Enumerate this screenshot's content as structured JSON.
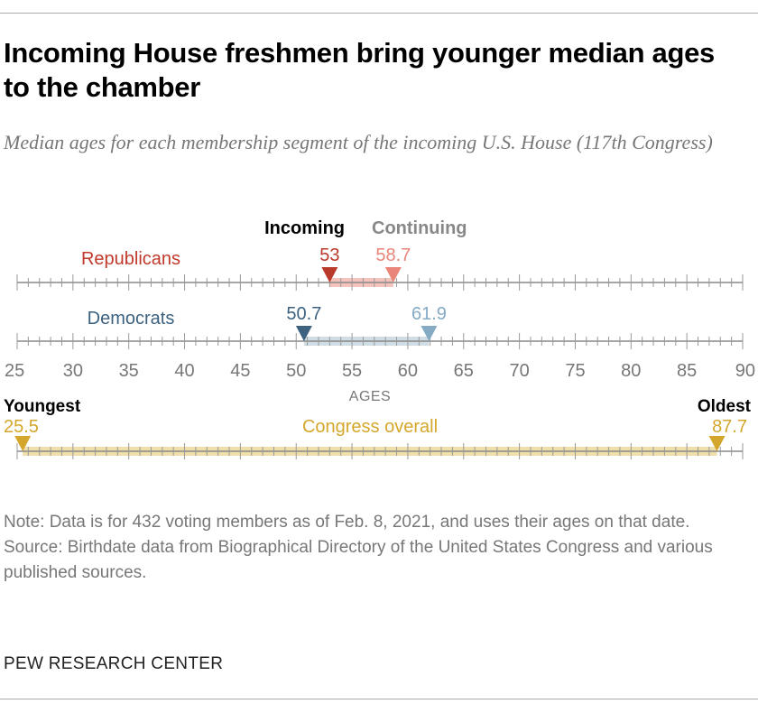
{
  "title": "Incoming House freshmen bring younger median ages to the chamber",
  "subtitle": "Median ages for each membership segment of the incoming U.S. House (117th Congress)",
  "note": "Note: Data is for 432 voting members as of Feb. 8, 2021, and uses their ages on that date.",
  "source": "Source: Birthdate data from Biographical Directory of the United States Congress and various published sources.",
  "footer": "PEW RESEARCH CENTER",
  "chart_data": {
    "type": "dot-range",
    "xlabel": "AGES",
    "xlim": [
      25,
      90
    ],
    "ticks": [
      25,
      30,
      35,
      40,
      45,
      50,
      55,
      60,
      65,
      70,
      75,
      80,
      85,
      90
    ],
    "legend": {
      "incoming": "Incoming",
      "continuing": "Continuing"
    },
    "rows": [
      {
        "name": "Republicans",
        "incoming": 53,
        "continuing": 58.7,
        "incoming_label": "53",
        "continuing_label": "58.7",
        "color_incoming": "#b93a2a",
        "color_continuing": "#e98579",
        "color_band": "#f2b8b1",
        "label_color": "#c0392b"
      },
      {
        "name": "Democrats",
        "incoming": 50.7,
        "continuing": 61.9,
        "incoming_label": "50.7",
        "continuing_label": "61.9",
        "color_incoming": "#3c6280",
        "color_continuing": "#84aac4",
        "color_band": "#c9d7e1",
        "label_color": "#3c6280"
      }
    ],
    "overall": {
      "name": "Congress overall",
      "youngest_label": "Youngest",
      "oldest_label": "Oldest",
      "youngest": 25.5,
      "oldest": 87.7,
      "youngest_text": "25.5",
      "oldest_text": "87.7",
      "color": "#d4a72c",
      "band": "#f0dfaa"
    }
  }
}
